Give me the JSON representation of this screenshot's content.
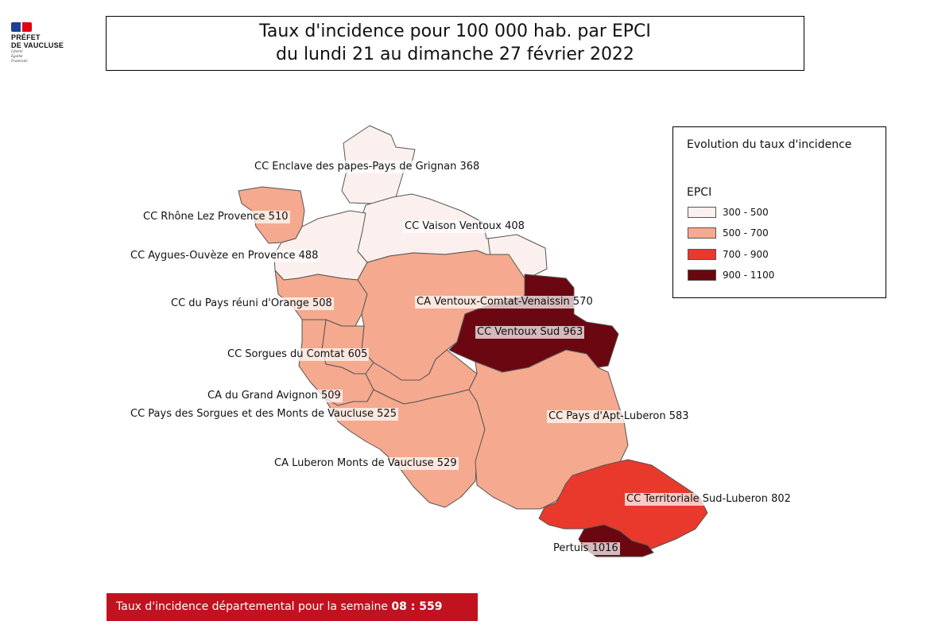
{
  "header": {
    "logo": {
      "line1": "PRÉFET",
      "line2": "DE VAUCLUSE",
      "motto": [
        "Liberté",
        "Égalité",
        "Fraternité"
      ]
    },
    "title_line1": "Taux d'incidence pour 100 000 hab. par EPCI",
    "title_line2": "du lundi 21  au dimanche 27 février 2022"
  },
  "legend": {
    "title": "Evolution du taux d'incidence",
    "subtitle": "EPCI",
    "classes": [
      {
        "label": "300 - 500",
        "color": "#fbf0ee"
      },
      {
        "label": "500 - 700",
        "color": "#f5a98e"
      },
      {
        "label": "700 - 900",
        "color": "#e8392c"
      },
      {
        "label": "900 - 1100",
        "color": "#6a0710"
      }
    ]
  },
  "regions": [
    {
      "name": "CC Enclave des papes-Pays de Grignan",
      "value": 368,
      "label": "CC Enclave des papes-Pays de Grignan  368"
    },
    {
      "name": "CC Rhône Lez Provence",
      "value": 510,
      "label": "CC Rhône Lez Provence  510"
    },
    {
      "name": "CC Vaison Ventoux",
      "value": 408,
      "label": "CC Vaison Ventoux  408"
    },
    {
      "name": "CC Aygues-Ouvèze en Provence",
      "value": 488,
      "label": "CC Aygues-Ouvèze en Provence  488"
    },
    {
      "name": "CC du Pays réuni d'Orange",
      "value": 508,
      "label": "CC du Pays réuni d'Orange  508"
    },
    {
      "name": "CA Ventoux-Comtat-Venaissin",
      "value": 570,
      "label": "CA Ventoux-Comtat-Venaissin  570"
    },
    {
      "name": "CC Ventoux Sud",
      "value": 963,
      "label": "CC Ventoux Sud  963"
    },
    {
      "name": "CC Sorgues du Comtat",
      "value": 605,
      "label": "CC Sorgues du Comtat  605"
    },
    {
      "name": "CA du Grand Avignon",
      "value": 509,
      "label": "CA du Grand Avignon  509"
    },
    {
      "name": "CC Pays des Sorgues et des Monts de Vaucluse",
      "value": 525,
      "label": "CC Pays des Sorgues et des Monts de Vaucluse  525"
    },
    {
      "name": "CC Pays d'Apt-Luberon",
      "value": 583,
      "label": "CC Pays d'Apt-Luberon  583"
    },
    {
      "name": "CA Luberon Monts de Vaucluse",
      "value": 529,
      "label": "CA Luberon Monts de Vaucluse  529"
    },
    {
      "name": "CC Territoriale Sud-Luberon",
      "value": 802,
      "label": "CC Territoriale Sud-Luberon  802"
    },
    {
      "name": "Pertuis",
      "value": 1016,
      "label": "Pertuis  1016"
    }
  ],
  "footer": {
    "text": "Taux d'incidence départemental pour la semaine ",
    "week": "08 : 559"
  }
}
